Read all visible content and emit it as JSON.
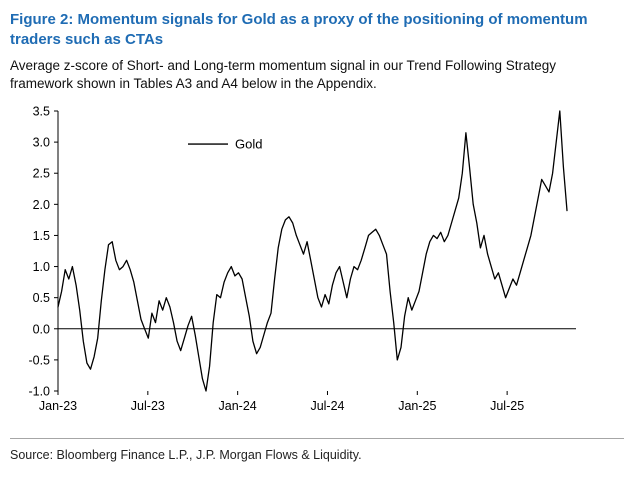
{
  "figure": {
    "title": "Figure 2: Momentum signals for Gold as a proxy of the positioning of momentum traders such as CTAs",
    "subtitle": "Average z-score of Short- and Long-term momentum signal in our Trend Following Strategy framework shown in Tables A3 and A4 below in the Appendix.",
    "source": "Source: Bloomberg Finance L.P., J.P. Morgan Flows & Liquidity.",
    "title_color": "#1f6cb4"
  },
  "chart_data": {
    "type": "line",
    "title": "",
    "xlabel": "",
    "ylabel": "",
    "grid": false,
    "legend_position": "inside-top-left",
    "ylim": [
      -1.0,
      3.5
    ],
    "y_ticks": [
      3.5,
      3.0,
      2.5,
      2.0,
      1.5,
      1.0,
      0.5,
      0.0,
      -0.5,
      -1.0
    ],
    "x_axis_range_months": [
      0,
      34.6
    ],
    "x_ticks": [
      {
        "m": 0,
        "label": "Jan-23"
      },
      {
        "m": 6,
        "label": "Jul-23"
      },
      {
        "m": 12,
        "label": "Jan-24"
      },
      {
        "m": 18,
        "label": "Jul-24"
      },
      {
        "m": 24,
        "label": "Jan-25"
      },
      {
        "m": 30,
        "label": "Jul-25"
      }
    ],
    "zero_line": 0.0,
    "series": [
      {
        "name": "Gold",
        "color": "#000000",
        "x_start_month": 0,
        "x_end_month": 34,
        "values": [
          0.35,
          0.6,
          0.95,
          0.8,
          1.0,
          0.7,
          0.3,
          -0.2,
          -0.55,
          -0.65,
          -0.45,
          -0.15,
          0.45,
          0.95,
          1.35,
          1.4,
          1.1,
          0.95,
          1.0,
          1.1,
          0.95,
          0.75,
          0.45,
          0.15,
          0.0,
          -0.15,
          0.25,
          0.1,
          0.45,
          0.3,
          0.5,
          0.35,
          0.1,
          -0.2,
          -0.35,
          -0.15,
          0.05,
          0.2,
          -0.1,
          -0.45,
          -0.8,
          -1.0,
          -0.6,
          0.1,
          0.55,
          0.5,
          0.75,
          0.9,
          1.0,
          0.85,
          0.9,
          0.8,
          0.5,
          0.2,
          -0.2,
          -0.4,
          -0.3,
          -0.1,
          0.1,
          0.25,
          0.8,
          1.3,
          1.6,
          1.75,
          1.8,
          1.7,
          1.5,
          1.35,
          1.2,
          1.4,
          1.1,
          0.8,
          0.5,
          0.35,
          0.55,
          0.4,
          0.7,
          0.9,
          1.0,
          0.75,
          0.5,
          0.8,
          1.0,
          0.95,
          1.1,
          1.3,
          1.5,
          1.55,
          1.6,
          1.5,
          1.35,
          1.2,
          0.6,
          0.1,
          -0.5,
          -0.3,
          0.2,
          0.5,
          0.3,
          0.45,
          0.6,
          0.9,
          1.2,
          1.4,
          1.5,
          1.45,
          1.55,
          1.4,
          1.5,
          1.7,
          1.9,
          2.1,
          2.5,
          3.15,
          2.6,
          2.0,
          1.7,
          1.3,
          1.5,
          1.2,
          1.0,
          0.8,
          0.9,
          0.7,
          0.5,
          0.65,
          0.8,
          0.7,
          0.9,
          1.1,
          1.3,
          1.5,
          1.8,
          2.1,
          2.4,
          2.3,
          2.2,
          2.5,
          3.0,
          3.5,
          2.6,
          1.9
        ]
      }
    ]
  }
}
